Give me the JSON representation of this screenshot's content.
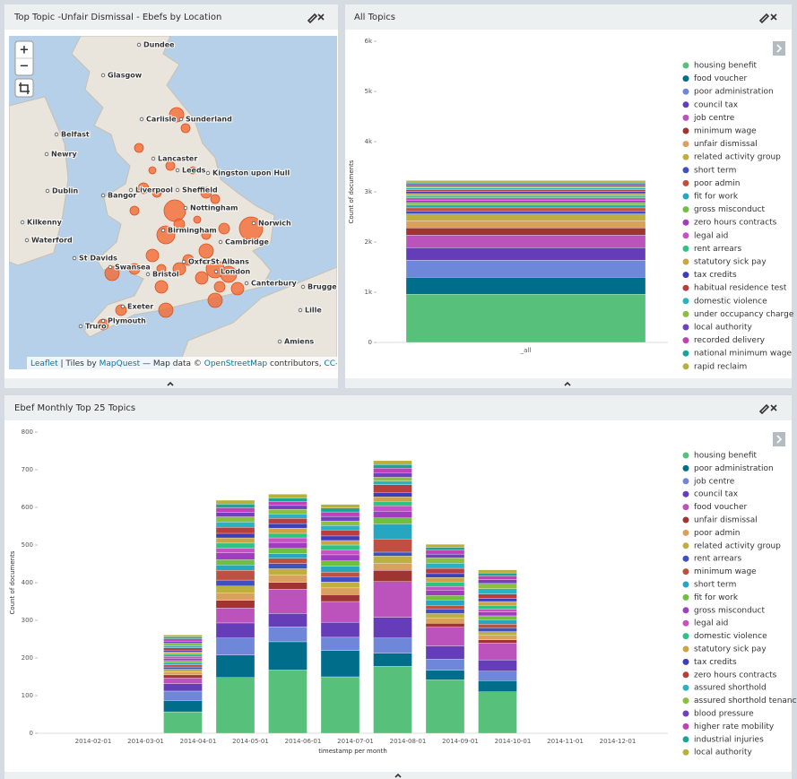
{
  "map": {
    "title": "Top Topic -Unfair Dismissal - Ebefs by Location",
    "zoom_in": "+",
    "zoom_out": "−",
    "places": [
      "Dundee",
      "Glasgow",
      "Carlisle",
      "Sunderland",
      "Belfast",
      "Newry",
      "Dublin",
      "Lancaster",
      "Leeds",
      "Kingston upon Hull",
      "Liverpool",
      "Sheffield",
      "Bangor",
      "Nottingham",
      "Kilkenny",
      "Birmingham",
      "Norwich",
      "Waterford",
      "Cambridge",
      "St Davids",
      "Swansea",
      "Oxford",
      "St Albans",
      "Bristol",
      "London",
      "Canterbury",
      "Brugge",
      "Exeter",
      "Plymouth",
      "Lille",
      "Truro",
      "Amiens"
    ],
    "attribution": [
      "Leaflet",
      " | Tiles by ",
      "MapQuest",
      " — Map data © ",
      "OpenStreetMap",
      " contributors, ",
      "CC-BY-SA"
    ]
  },
  "chart_data": [
    {
      "type": "bar",
      "title": "All Topics",
      "ylabel": "Count of documents",
      "categories": [
        "_all"
      ],
      "legend": "right",
      "ylim": [
        0,
        6000
      ],
      "yticks": [
        0,
        {
          "value": 1000,
          "label": "1k"
        },
        {
          "value": 2000,
          "label": "2k"
        },
        {
          "value": 3000,
          "label": "3k"
        },
        {
          "value": 4000,
          "label": "4k"
        },
        {
          "value": 5000,
          "label": "5k"
        },
        {
          "value": 6000,
          "label": "6k"
        }
      ],
      "series": [
        {
          "name": "housing benefit",
          "color": "#57c17b",
          "values": [
            960
          ]
        },
        {
          "name": "food voucher",
          "color": "#006e8a",
          "values": [
            340
          ]
        },
        {
          "name": "poor administration",
          "color": "#6f87d8",
          "values": [
            340
          ]
        },
        {
          "name": "council tax",
          "color": "#663db8",
          "values": [
            250
          ]
        },
        {
          "name": "job centre",
          "color": "#bc52bc",
          "values": [
            250
          ]
        },
        {
          "name": "minimum wage",
          "color": "#9e3533",
          "values": [
            140
          ]
        },
        {
          "name": "unfair dismissal",
          "color": "#daa05d",
          "values": [
            140
          ]
        },
        {
          "name": "related activity group",
          "color": "#bfaf40",
          "values": [
            140
          ]
        },
        {
          "name": "short term",
          "color": "#4050bf",
          "values": [
            60
          ]
        },
        {
          "name": "poor admin",
          "color": "#bf5040",
          "values": [
            60
          ]
        },
        {
          "name": "fit for work",
          "color": "#27a6c0",
          "values": [
            55
          ]
        },
        {
          "name": "gross misconduct",
          "color": "#70bf40",
          "values": [
            50
          ]
        },
        {
          "name": "zero hours contracts",
          "color": "#a03dbf",
          "values": [
            50
          ]
        },
        {
          "name": "legal aid",
          "color": "#c94fc4",
          "values": [
            45
          ]
        },
        {
          "name": "rent arrears",
          "color": "#2ec283",
          "values": [
            45
          ]
        },
        {
          "name": "statutory sick pay",
          "color": "#c9a548",
          "values": [
            40
          ]
        },
        {
          "name": "tax credits",
          "color": "#3d3db8",
          "values": [
            40
          ]
        },
        {
          "name": "habitual residence test",
          "color": "#b83d3d",
          "values": [
            35
          ]
        },
        {
          "name": "domestic violence",
          "color": "#2ab2c0",
          "values": [
            35
          ]
        },
        {
          "name": "under occupancy charge",
          "color": "#8bbf40",
          "values": [
            30
          ]
        },
        {
          "name": "local authority",
          "color": "#7040bf",
          "values": [
            30
          ]
        },
        {
          "name": "recorded delivery",
          "color": "#c040b8",
          "values": [
            30
          ]
        },
        {
          "name": "national minimum wage",
          "color": "#19a595",
          "values": [
            30
          ]
        },
        {
          "name": "rapid reclaim",
          "color": "#b8b03d",
          "values": [
            30
          ]
        }
      ]
    },
    {
      "type": "bar",
      "title": "Ebef Monthly Top 25 Topics",
      "ylabel": "Count of documents",
      "xlabel": "timestamp per month",
      "legend": "right",
      "categories": [
        "2014-02-01",
        "2014-03-01",
        "2014-04-01",
        "2014-05-01",
        "2014-06-01",
        "2014-07-01",
        "2014-08-01",
        "2014-09-01",
        "2014-10-01",
        "2014-11-01",
        "2014-12-01"
      ],
      "ylim": [
        0,
        800
      ],
      "yticks": [
        0,
        100,
        200,
        300,
        400,
        500,
        600,
        700,
        800
      ],
      "series": [
        {
          "name": "housing benefit",
          "color": "#57c17b",
          "values": [
            null,
            57,
            148,
            168,
            150,
            178,
            142,
            110,
            null,
            null,
            null
          ]
        },
        {
          "name": "poor administration",
          "color": "#006e8a",
          "values": [
            null,
            30,
            60,
            75,
            70,
            35,
            25,
            30,
            null,
            null,
            null
          ]
        },
        {
          "name": "job centre",
          "color": "#6f87d8",
          "values": [
            null,
            25,
            45,
            40,
            35,
            40,
            30,
            25,
            null,
            null,
            null
          ]
        },
        {
          "name": "council tax",
          "color": "#663db8",
          "values": [
            null,
            20,
            40,
            35,
            40,
            55,
            35,
            30,
            null,
            null,
            null
          ]
        },
        {
          "name": "food voucher",
          "color": "#bc52bc",
          "values": [
            null,
            15,
            40,
            65,
            55,
            95,
            50,
            45,
            null,
            null,
            null
          ]
        },
        {
          "name": "unfair dismissal",
          "color": "#9e3533",
          "values": [
            null,
            8,
            20,
            18,
            18,
            30,
            10,
            8,
            null,
            null,
            null
          ]
        },
        {
          "name": "poor admin",
          "color": "#daa05d",
          "values": [
            null,
            8,
            20,
            20,
            18,
            18,
            14,
            12,
            null,
            null,
            null
          ]
        },
        {
          "name": "related activity group",
          "color": "#bfaf40",
          "values": [
            null,
            7,
            18,
            16,
            16,
            20,
            12,
            10,
            null,
            null,
            null
          ]
        },
        {
          "name": "rent arrears",
          "color": "#4050bf",
          "values": [
            null,
            6,
            16,
            14,
            14,
            10,
            12,
            10,
            null,
            null,
            null
          ]
        },
        {
          "name": "minimum wage",
          "color": "#bf5040",
          "values": [
            null,
            6,
            26,
            14,
            12,
            35,
            10,
            10,
            null,
            null,
            null
          ]
        },
        {
          "name": "short term",
          "color": "#27a6c0",
          "values": [
            null,
            6,
            14,
            12,
            16,
            40,
            14,
            12,
            null,
            null,
            null
          ]
        },
        {
          "name": "fit for work",
          "color": "#70bf40",
          "values": [
            null,
            5,
            14,
            14,
            14,
            16,
            12,
            10,
            null,
            null,
            null
          ]
        },
        {
          "name": "gross misconduct",
          "color": "#a03dbf",
          "values": [
            null,
            6,
            18,
            16,
            16,
            18,
            14,
            10,
            null,
            null,
            null
          ]
        },
        {
          "name": "legal aid",
          "color": "#c94fc4",
          "values": [
            null,
            5,
            12,
            12,
            12,
            14,
            10,
            8,
            null,
            null,
            null
          ]
        },
        {
          "name": "domestic violence",
          "color": "#2ec283",
          "values": [
            null,
            6,
            14,
            12,
            14,
            12,
            12,
            10,
            null,
            null,
            null
          ]
        },
        {
          "name": "statutory sick pay",
          "color": "#c9a548",
          "values": [
            null,
            6,
            14,
            14,
            12,
            12,
            12,
            10,
            null,
            null,
            null
          ]
        },
        {
          "name": "tax credits",
          "color": "#3d3db8",
          "values": [
            null,
            5,
            12,
            12,
            12,
            12,
            10,
            8,
            null,
            null,
            null
          ]
        },
        {
          "name": "zero hours contracts",
          "color": "#b83d3d",
          "values": [
            null,
            6,
            16,
            14,
            16,
            20,
            14,
            12,
            null,
            null,
            null
          ]
        },
        {
          "name": "assured shorthold",
          "color": "#2ab2c0",
          "values": [
            null,
            6,
            14,
            12,
            12,
            10,
            14,
            14,
            null,
            null,
            null
          ]
        },
        {
          "name": "assured shorthold tenancy",
          "color": "#8bbf40",
          "values": [
            null,
            6,
            14,
            12,
            12,
            10,
            14,
            14,
            null,
            null,
            null
          ]
        },
        {
          "name": "blood pressure",
          "color": "#7040bf",
          "values": [
            null,
            6,
            12,
            10,
            12,
            12,
            10,
            10,
            null,
            null,
            null
          ]
        },
        {
          "name": "higher rate mobility",
          "color": "#c040b8",
          "values": [
            null,
            6,
            12,
            10,
            12,
            12,
            10,
            10,
            null,
            null,
            null
          ]
        },
        {
          "name": "industrial injuries",
          "color": "#19a595",
          "values": [
            null,
            5,
            10,
            10,
            10,
            10,
            8,
            8,
            null,
            null,
            null
          ]
        },
        {
          "name": "local authority",
          "color": "#b8b03d",
          "values": [
            null,
            5,
            10,
            10,
            10,
            10,
            8,
            8,
            null,
            null,
            null
          ]
        }
      ]
    }
  ]
}
